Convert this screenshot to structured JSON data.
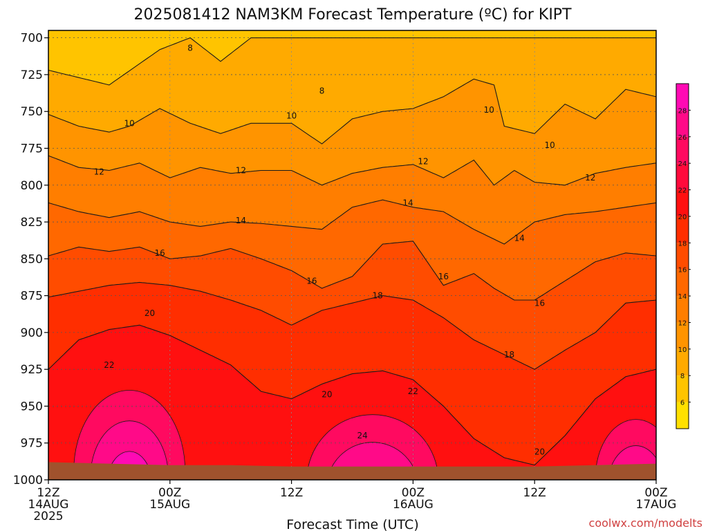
{
  "chart_data": {
    "type": "heatmap",
    "title": "2025081412 NAM3KM Forecast Temperature (ºC) for KIPT",
    "xlabel": "Forecast Time (UTC)",
    "ylabel": "",
    "credit": "coolwx.com/modelts",
    "x_ticks": [
      {
        "line1": "12Z",
        "line2": "14AUG",
        "line3": "2025"
      },
      {
        "line1": "00Z",
        "line2": "15AUG",
        "line3": ""
      },
      {
        "line1": "12Z",
        "line2": "",
        "line3": ""
      },
      {
        "line1": "00Z",
        "line2": "16AUG",
        "line3": ""
      },
      {
        "line1": "12Z",
        "line2": "",
        "line3": ""
      },
      {
        "line1": "00Z",
        "line2": "17AUG",
        "line3": ""
      }
    ],
    "x_hours": [
      0,
      12,
      24,
      36,
      48,
      60
    ],
    "xlim_hours": [
      0,
      60
    ],
    "y_ticks": [
      700,
      725,
      750,
      775,
      800,
      825,
      850,
      875,
      900,
      925,
      950,
      975,
      1000
    ],
    "ylim_hPa": [
      1000,
      695
    ],
    "colorbar": {
      "levels": [
        4,
        6,
        8,
        10,
        12,
        14,
        16,
        18,
        20,
        22,
        24,
        26,
        28,
        30
      ],
      "tick_labels": [
        "6",
        "8",
        "10",
        "12",
        "14",
        "16",
        "18",
        "20",
        "22",
        "24",
        "26",
        "28"
      ],
      "colors": [
        "#ffe000",
        "#ffc400",
        "#ffaa00",
        "#ff9400",
        "#ff7e00",
        "#ff6800",
        "#ff4c00",
        "#ff2e00",
        "#ff1010",
        "#ff0a3c",
        "#ff0a60",
        "#ff0a88",
        "#ff0ab4"
      ]
    },
    "contours": [
      {
        "level": 8,
        "label": "8",
        "hours": [
          0,
          6,
          11,
          14,
          17,
          20,
          24,
          30,
          36,
          42,
          48,
          54,
          60
        ],
        "pressure": [
          722,
          732,
          708,
          700,
          716,
          700,
          700,
          700,
          700,
          700,
          700,
          700,
          700
        ]
      },
      {
        "level": 10,
        "label": "10",
        "hours": [
          0,
          3,
          6,
          8,
          11,
          14,
          17,
          20,
          24,
          27,
          30,
          33,
          36,
          39,
          42,
          44,
          45,
          48,
          51,
          54,
          57,
          60
        ],
        "pressure": [
          752,
          760,
          764,
          760,
          748,
          758,
          765,
          758,
          758,
          772,
          755,
          750,
          748,
          740,
          728,
          732,
          760,
          765,
          745,
          755,
          735,
          740
        ]
      },
      {
        "level": 12,
        "label": "12",
        "hours": [
          0,
          3,
          6,
          9,
          12,
          15,
          18,
          21,
          24,
          27,
          30,
          33,
          36,
          39,
          42,
          44,
          46,
          48,
          51,
          54,
          57,
          60
        ],
        "pressure": [
          780,
          788,
          790,
          785,
          795,
          788,
          792,
          790,
          790,
          800,
          792,
          788,
          786,
          795,
          783,
          800,
          790,
          798,
          800,
          792,
          788,
          785
        ]
      },
      {
        "level": 14,
        "label": "14",
        "hours": [
          0,
          3,
          6,
          9,
          12,
          15,
          18,
          21,
          24,
          27,
          30,
          33,
          36,
          39,
          42,
          45,
          48,
          51,
          54,
          57,
          60
        ],
        "pressure": [
          812,
          818,
          822,
          818,
          825,
          828,
          825,
          826,
          828,
          830,
          815,
          810,
          815,
          818,
          830,
          840,
          825,
          820,
          818,
          815,
          812
        ]
      },
      {
        "level": 16,
        "label": "16",
        "hours": [
          0,
          3,
          6,
          9,
          12,
          15,
          18,
          21,
          24,
          27,
          30,
          33,
          36,
          39,
          42,
          44,
          46,
          48,
          51,
          54,
          57,
          60
        ],
        "pressure": [
          848,
          842,
          845,
          842,
          850,
          848,
          843,
          850,
          858,
          870,
          862,
          840,
          838,
          868,
          860,
          870,
          878,
          878,
          865,
          852,
          846,
          848
        ]
      },
      {
        "level": 18,
        "label": "18",
        "hours": [
          0,
          3,
          6,
          9,
          12,
          15,
          18,
          21,
          24,
          27,
          30,
          33,
          36,
          39,
          42,
          45,
          48,
          51,
          54,
          57,
          60
        ],
        "pressure": [
          876,
          872,
          868,
          866,
          868,
          872,
          878,
          885,
          895,
          885,
          880,
          875,
          878,
          890,
          905,
          915,
          925,
          912,
          900,
          880,
          878
        ]
      },
      {
        "level": 20,
        "label": "20",
        "hours": [
          0,
          3,
          6,
          9,
          12,
          15,
          18,
          21,
          24,
          27,
          30,
          33,
          36,
          39,
          42,
          45,
          48,
          51,
          54,
          57,
          60
        ],
        "pressure": [
          925,
          905,
          898,
          895,
          902,
          912,
          922,
          940,
          945,
          935,
          928,
          926,
          932,
          950,
          972,
          985,
          990,
          970,
          945,
          930,
          925
        ]
      }
    ],
    "contour_labels": [
      {
        "text": "8",
        "hours": 14,
        "pressure": 707
      },
      {
        "text": "8",
        "hours": 27,
        "pressure": 736
      },
      {
        "text": "10",
        "hours": 8,
        "pressure": 758
      },
      {
        "text": "10",
        "hours": 24,
        "pressure": 753
      },
      {
        "text": "10",
        "hours": 43.5,
        "pressure": 749
      },
      {
        "text": "10",
        "hours": 49.5,
        "pressure": 773
      },
      {
        "text": "12",
        "hours": 5,
        "pressure": 791
      },
      {
        "text": "12",
        "hours": 19,
        "pressure": 790
      },
      {
        "text": "12",
        "hours": 37,
        "pressure": 784
      },
      {
        "text": "12",
        "hours": 53.5,
        "pressure": 795
      },
      {
        "text": "14",
        "hours": 19,
        "pressure": 824
      },
      {
        "text": "14",
        "hours": 35.5,
        "pressure": 812
      },
      {
        "text": "14",
        "hours": 46.5,
        "pressure": 836
      },
      {
        "text": "16",
        "hours": 11,
        "pressure": 846
      },
      {
        "text": "16",
        "hours": 26,
        "pressure": 865
      },
      {
        "text": "16",
        "hours": 39,
        "pressure": 862
      },
      {
        "text": "16",
        "hours": 48.5,
        "pressure": 880
      },
      {
        "text": "18",
        "hours": 32.5,
        "pressure": 875
      },
      {
        "text": "18",
        "hours": 45.5,
        "pressure": 915
      },
      {
        "text": "20",
        "hours": 10,
        "pressure": 887
      },
      {
        "text": "20",
        "hours": 27.5,
        "pressure": 942
      },
      {
        "text": "20",
        "hours": 48.5,
        "pressure": 981
      },
      {
        "text": "22",
        "hours": 6,
        "pressure": 922
      },
      {
        "text": "22",
        "hours": 36,
        "pressure": 940
      },
      {
        "text": "24",
        "hours": 31,
        "pressure": 970
      }
    ]
  }
}
